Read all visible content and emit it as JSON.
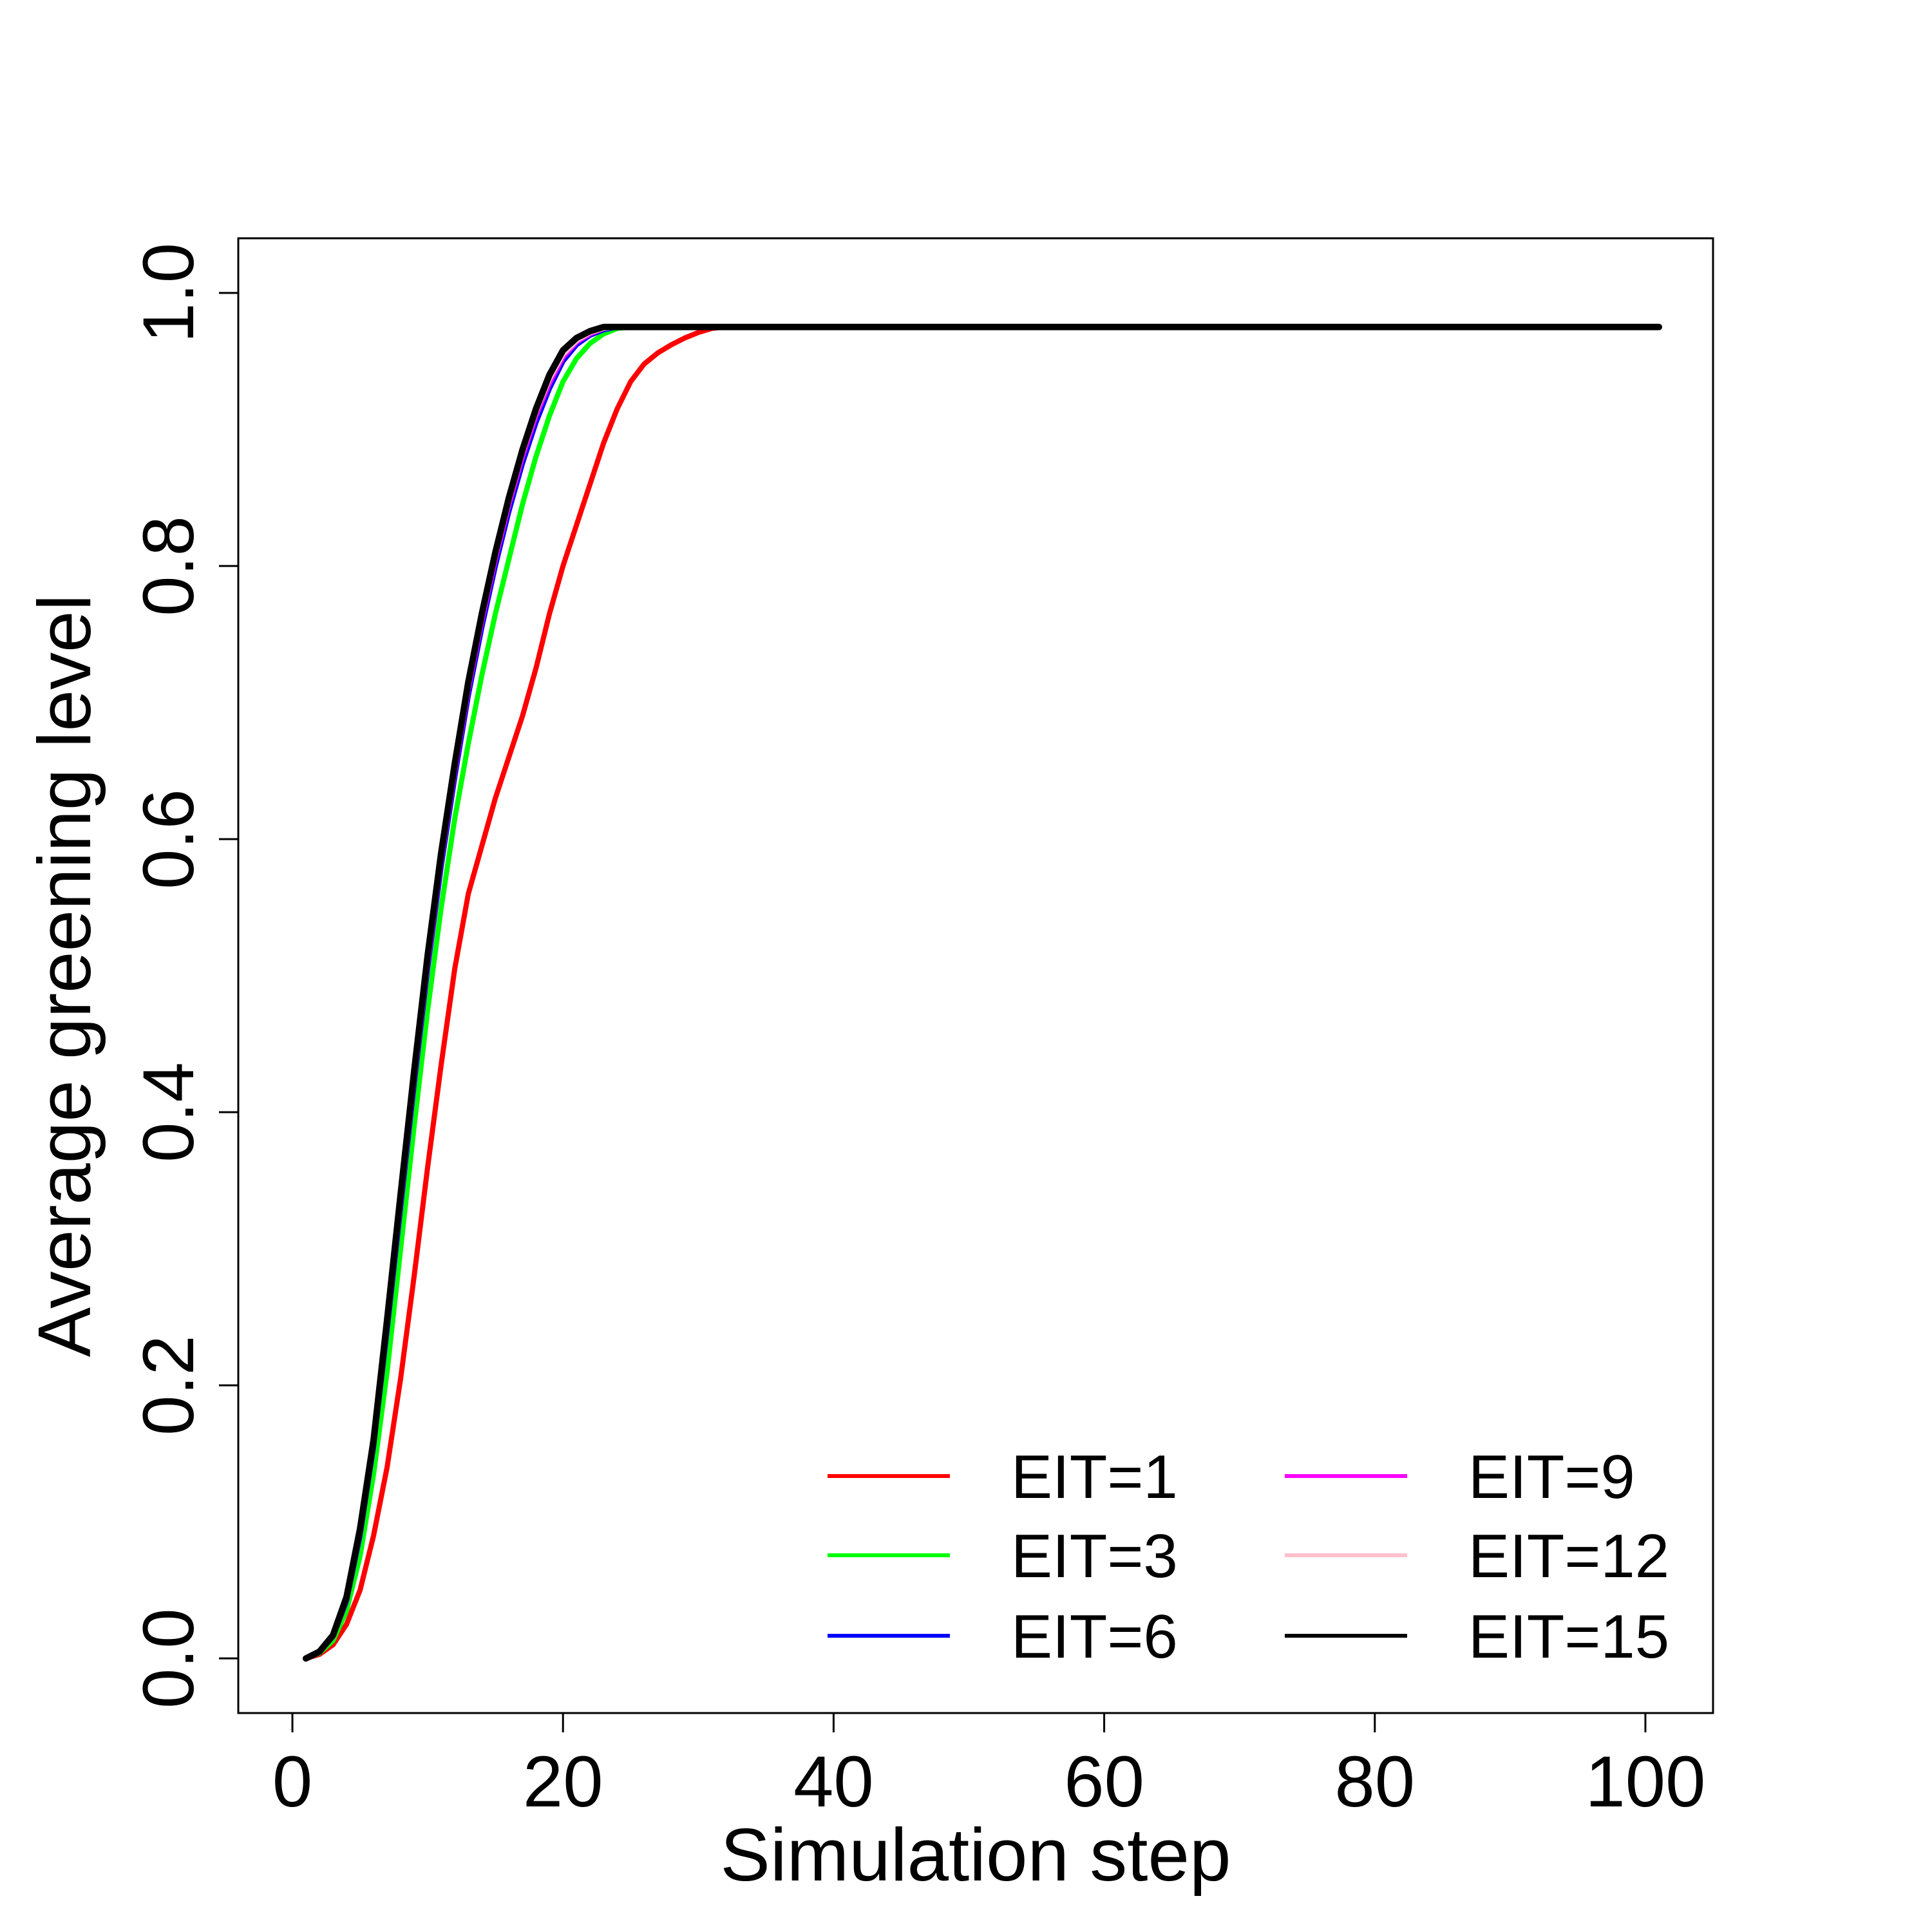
{
  "chart_data": {
    "type": "line",
    "title": "",
    "xlabel": "Simulation step",
    "ylabel": "Average greening level",
    "xlim": [
      -4,
      105
    ],
    "ylim": [
      -0.04,
      1.04
    ],
    "xticks": [
      0,
      20,
      40,
      60,
      80,
      100
    ],
    "yticks": [
      0.0,
      0.2,
      0.4,
      0.6,
      0.8,
      1.0
    ],
    "xtick_labels": [
      "0",
      "20",
      "40",
      "60",
      "80",
      "100"
    ],
    "ytick_labels": [
      "0.0",
      "0.2",
      "0.4",
      "0.6",
      "0.8",
      "1.0"
    ],
    "grid": false,
    "legend_position": "bottom-right",
    "plateau": 0.975,
    "series": [
      {
        "name": "EIT=1",
        "color": "#ff0000",
        "x": [
          1,
          2,
          3,
          4,
          5,
          6,
          7,
          8,
          9,
          10,
          11,
          12,
          13,
          14,
          15,
          16,
          17,
          18,
          19,
          20,
          21,
          22,
          23,
          24,
          25,
          26,
          27,
          28,
          29,
          30,
          31,
          32
        ],
        "y": [
          0.0,
          0.003,
          0.01,
          0.025,
          0.05,
          0.09,
          0.14,
          0.205,
          0.28,
          0.36,
          0.435,
          0.505,
          0.56,
          0.595,
          0.63,
          0.66,
          0.69,
          0.725,
          0.765,
          0.8,
          0.83,
          0.86,
          0.89,
          0.915,
          0.935,
          0.948,
          0.956,
          0.962,
          0.967,
          0.971,
          0.974,
          0.975
        ]
      },
      {
        "name": "EIT=3",
        "color": "#00ff00",
        "x": [
          1,
          2,
          3,
          4,
          5,
          6,
          7,
          8,
          9,
          10,
          11,
          12,
          13,
          14,
          15,
          16,
          17,
          18,
          19,
          20,
          21,
          22,
          23,
          24,
          25,
          26
        ],
        "y": [
          0.0,
          0.004,
          0.013,
          0.035,
          0.075,
          0.135,
          0.21,
          0.3,
          0.39,
          0.475,
          0.55,
          0.615,
          0.67,
          0.72,
          0.765,
          0.805,
          0.845,
          0.88,
          0.91,
          0.935,
          0.952,
          0.963,
          0.97,
          0.974,
          0.975,
          0.975
        ]
      },
      {
        "name": "EIT=6",
        "color": "#0000ff",
        "x": [
          1,
          2,
          3,
          4,
          5,
          6,
          7,
          8,
          9,
          10,
          11,
          12,
          13,
          14,
          15,
          16,
          17,
          18,
          19,
          20,
          21,
          22,
          23,
          24,
          25
        ],
        "y": [
          0.0,
          0.005,
          0.016,
          0.042,
          0.09,
          0.155,
          0.24,
          0.33,
          0.42,
          0.505,
          0.58,
          0.645,
          0.705,
          0.755,
          0.8,
          0.84,
          0.875,
          0.905,
          0.93,
          0.95,
          0.962,
          0.969,
          0.973,
          0.975,
          0.975
        ]
      },
      {
        "name": "EIT=9",
        "color": "#ff00ff",
        "x": [
          1,
          2,
          3,
          4,
          5,
          6,
          7,
          8,
          9,
          10,
          11,
          12,
          13,
          14,
          15,
          16,
          17,
          18,
          19,
          20,
          21,
          22,
          23,
          24,
          25
        ],
        "y": [
          0.0,
          0.005,
          0.016,
          0.043,
          0.092,
          0.157,
          0.243,
          0.334,
          0.424,
          0.509,
          0.585,
          0.65,
          0.71,
          0.76,
          0.805,
          0.845,
          0.88,
          0.91,
          0.934,
          0.953,
          0.964,
          0.97,
          0.974,
          0.975,
          0.975
        ]
      },
      {
        "name": "EIT=12",
        "color": "#ffc0cb",
        "x": [
          1,
          2,
          3,
          4,
          5,
          6,
          7,
          8,
          9,
          10,
          11,
          12,
          13,
          14,
          15,
          16,
          17,
          18,
          19,
          20,
          21,
          22,
          23,
          24,
          25
        ],
        "y": [
          0.0,
          0.005,
          0.017,
          0.044,
          0.093,
          0.158,
          0.245,
          0.336,
          0.427,
          0.512,
          0.588,
          0.653,
          0.713,
          0.763,
          0.808,
          0.848,
          0.883,
          0.913,
          0.937,
          0.955,
          0.965,
          0.971,
          0.974,
          0.975,
          0.975
        ]
      },
      {
        "name": "EIT=15",
        "color": "#000000",
        "x": [
          1,
          2,
          3,
          4,
          5,
          6,
          7,
          8,
          9,
          10,
          11,
          12,
          13,
          14,
          15,
          16,
          17,
          18,
          19,
          20,
          21,
          22,
          23,
          24,
          25
        ],
        "y": [
          0.0,
          0.005,
          0.017,
          0.045,
          0.095,
          0.16,
          0.248,
          0.34,
          0.43,
          0.515,
          0.59,
          0.655,
          0.715,
          0.765,
          0.81,
          0.85,
          0.885,
          0.915,
          0.94,
          0.958,
          0.967,
          0.972,
          0.975,
          0.975,
          0.975
        ]
      }
    ]
  }
}
